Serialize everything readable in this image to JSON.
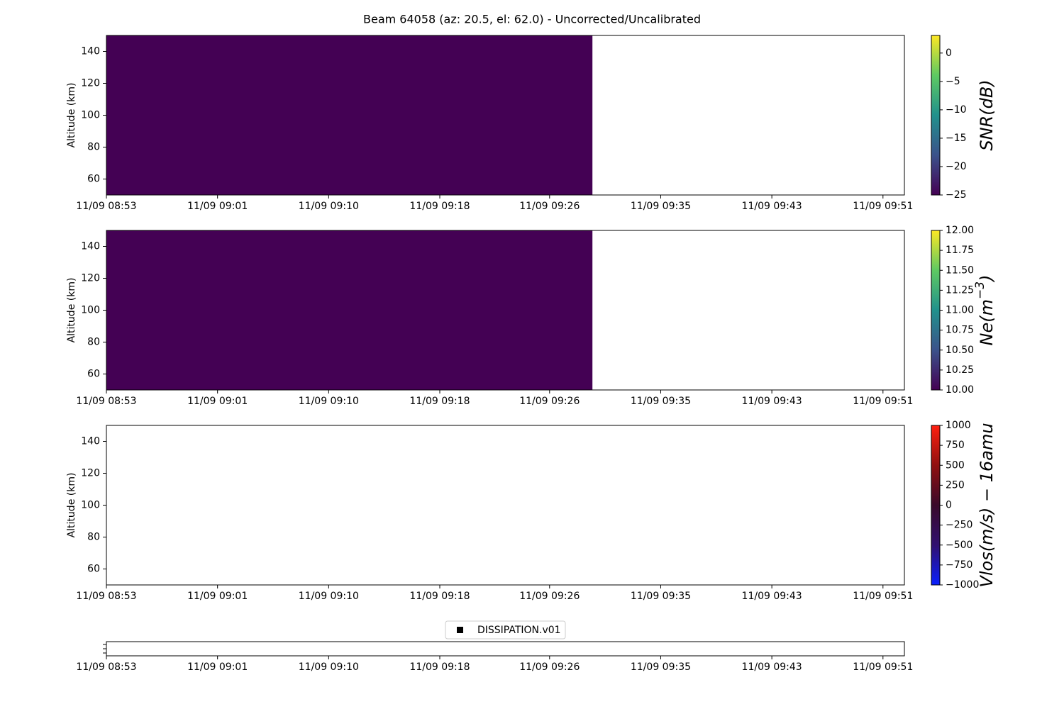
{
  "chart_data": {
    "type": "heatmap",
    "title": "Beam 64058 (az: 20.5, el: 62.0) - Uncorrected/Uncalibrated",
    "xlim": [
      533,
      592.6
    ],
    "xticks": [
      {
        "value": 533,
        "label": "11/09 08:53"
      },
      {
        "value": 541.3,
        "label": "11/09 09:01"
      },
      {
        "value": 549.6,
        "label": "11/09 09:10"
      },
      {
        "value": 557.9,
        "label": "11/09 09:18"
      },
      {
        "value": 566.1,
        "label": "11/09 09:26"
      },
      {
        "value": 574.4,
        "label": "11/09 09:35"
      },
      {
        "value": 582.7,
        "label": "11/09 09:43"
      },
      {
        "value": 591,
        "label": "11/09 09:51"
      }
    ],
    "panels": [
      {
        "ylabel": "Altitude (km)",
        "ylim": [
          50,
          150
        ],
        "yticks": [
          60,
          80,
          100,
          120,
          140
        ],
        "clim": [
          -25,
          3.1
        ],
        "cticks": [
          {
            "value": -25,
            "label": "−25"
          },
          {
            "value": -20,
            "label": "−20"
          },
          {
            "value": -15,
            "label": "−15"
          },
          {
            "value": -10,
            "label": "−10"
          },
          {
            "value": -5,
            "label": "−5"
          },
          0
        ],
        "colorbar_label": [
          "SNR(dB)"
        ],
        "colormap": [
          "#440154",
          "#3b528b",
          "#21918c",
          "#5ec962",
          "#fde725"
        ],
        "cells": [
          {
            "x": [
              533,
              569.3
            ],
            "y": [
              50,
              150
            ],
            "value": -25,
            "color": "#440154"
          }
        ]
      },
      {
        "ylabel": "Altitude (km)",
        "ylim": [
          50,
          150
        ],
        "yticks": [
          60,
          80,
          100,
          120,
          140
        ],
        "clim": [
          10,
          12
        ],
        "cticks": [
          {
            "value": 10,
            "label": "10.00"
          },
          {
            "value": 10.25,
            "label": "10.25"
          },
          {
            "value": 10.5,
            "label": "10.50"
          },
          {
            "value": 10.75,
            "label": "10.75"
          },
          {
            "value": 11,
            "label": "11.00"
          },
          {
            "value": 11.25,
            "label": "11.25"
          },
          {
            "value": 11.5,
            "label": "11.50"
          },
          {
            "value": 11.75,
            "label": "11.75"
          },
          {
            "value": 12,
            "label": "12.00"
          }
        ],
        "colorbar_label": [
          "Ne(m",
          "−3",
          ")"
        ],
        "colormap": [
          "#440154",
          "#3b528b",
          "#21918c",
          "#5ec962",
          "#fde725"
        ],
        "cells": [
          {
            "x": [
              533,
              569.3
            ],
            "y": [
              50,
              150
            ],
            "value": 10,
            "color": "#440154"
          }
        ]
      },
      {
        "ylabel": "Altitude (km)",
        "ylim": [
          50,
          150
        ],
        "yticks": [
          60,
          80,
          100,
          120,
          140
        ],
        "clim": [
          -1000,
          1000
        ],
        "cticks": [
          {
            "value": -1000,
            "label": "−1000"
          },
          {
            "value": -750,
            "label": "−750"
          },
          {
            "value": -500,
            "label": "−500"
          },
          {
            "value": -250,
            "label": "−250"
          },
          0,
          250,
          500,
          750,
          1000
        ],
        "colorbar_label": [
          "Vlos(m/s) − 16amu"
        ],
        "colormap": [
          "#0a20ff",
          "#301070",
          "#3a0a2a",
          "#901010",
          "#ff2010"
        ],
        "cells": []
      }
    ],
    "legend": {
      "names": [
        "DISSIPATION.v01"
      ],
      "color": "#000000"
    }
  }
}
